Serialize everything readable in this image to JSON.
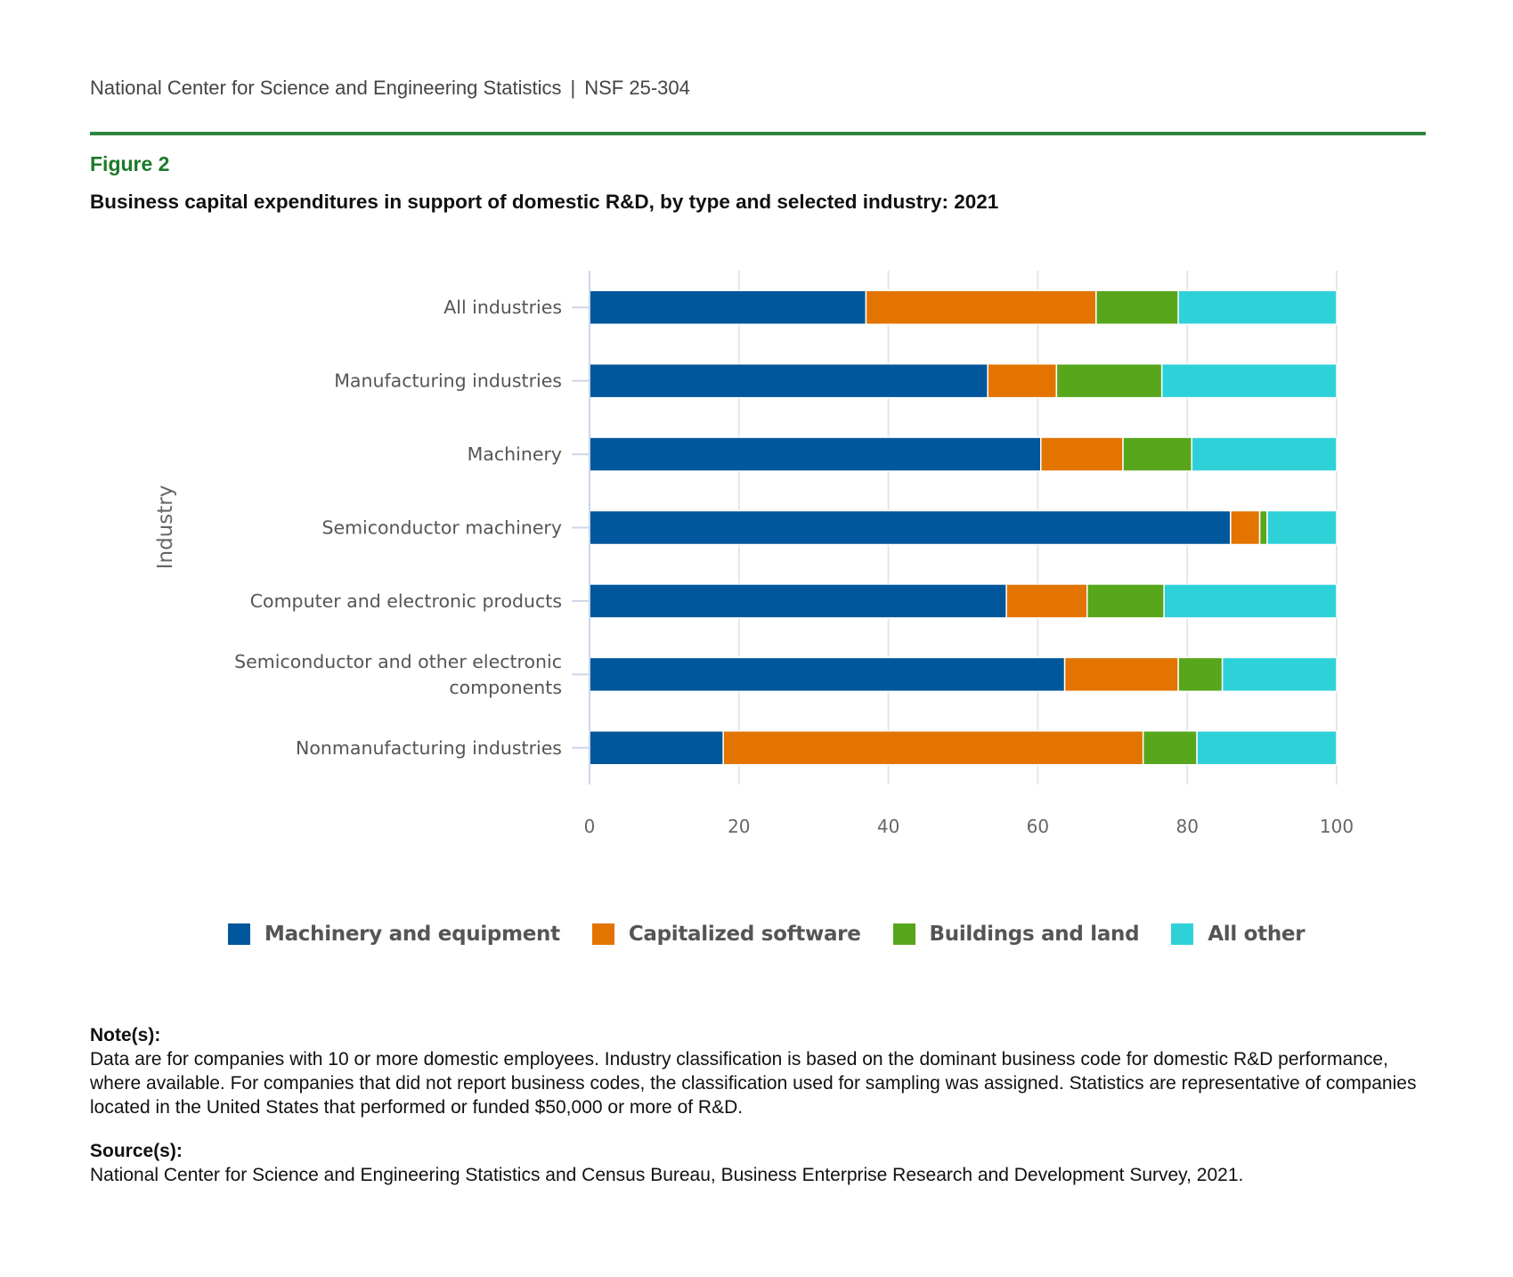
{
  "header": {
    "org": "National Center for Science and Engineering Statistics",
    "separator": "|",
    "report_id": "NSF 25-304"
  },
  "figure": {
    "label": "Figure 2",
    "title": "Business capital expenditures in support of domestic R&D, by type and selected industry: 2021"
  },
  "colors": {
    "rule": "#2e8540",
    "figure_label": "#1b7a2a",
    "machinery": "#01579b",
    "software": "#e37400",
    "buildings": "#57a61c",
    "other": "#2fd1d9"
  },
  "chart_data": {
    "type": "bar",
    "orientation": "horizontal",
    "stacked": true,
    "title": "Business capital expenditures in support of domestic R&D, by type and selected industry: 2021",
    "xlabel": "",
    "ylabel": "Industry",
    "xlim": [
      0,
      100
    ],
    "xticks": [
      0,
      20,
      40,
      60,
      80,
      100
    ],
    "grid": true,
    "legend_position": "bottom",
    "categories": [
      "All industries",
      "Manufacturing industries",
      "Machinery",
      "Semiconductor machinery",
      "Computer and electronic products",
      "Semiconductor and other electronic components",
      "Nonmanufacturing industries"
    ],
    "category_label_lines": [
      [
        "All industries"
      ],
      [
        "Manufacturing industries"
      ],
      [
        "Machinery"
      ],
      [
        "Semiconductor machinery"
      ],
      [
        "Computer and electronic products"
      ],
      [
        "Semiconductor and other electronic",
        "components"
      ],
      [
        "Nonmanufacturing industries"
      ]
    ],
    "series": [
      {
        "name": "Machinery and equipment",
        "color": "#01579b",
        "values": [
          37.0,
          53.3,
          60.4,
          85.8,
          55.8,
          63.6,
          17.9
        ]
      },
      {
        "name": "Capitalized software",
        "color": "#e37400",
        "values": [
          30.8,
          9.2,
          11.0,
          3.9,
          10.8,
          15.2,
          56.2
        ]
      },
      {
        "name": "Buildings and land",
        "color": "#57a61c",
        "values": [
          11.0,
          14.1,
          9.2,
          1.0,
          10.3,
          5.9,
          7.2
        ]
      },
      {
        "name": "All other",
        "color": "#2fd1d9",
        "values": [
          21.2,
          23.4,
          19.4,
          9.3,
          23.1,
          15.3,
          18.7
        ]
      }
    ]
  },
  "legend": [
    {
      "label": "Machinery and equipment",
      "color": "#01579b"
    },
    {
      "label": "Capitalized software",
      "color": "#e37400"
    },
    {
      "label": "Buildings and land",
      "color": "#57a61c"
    },
    {
      "label": "All other",
      "color": "#2fd1d9"
    }
  ],
  "notes": {
    "heading": "Note(s):",
    "text": "Data are for companies with 10 or more domestic employees. Industry classification is based on the dominant business code for domestic R&D performance, where available. For companies that did not report business codes, the classification used for sampling was assigned. Statistics are representative of companies located in the United States that performed or funded $50,000 or more of R&D."
  },
  "sources": {
    "heading": "Source(s):",
    "text": "National Center for Science and Engineering Statistics and Census Bureau, Business Enterprise Research and Development Survey, 2021."
  }
}
